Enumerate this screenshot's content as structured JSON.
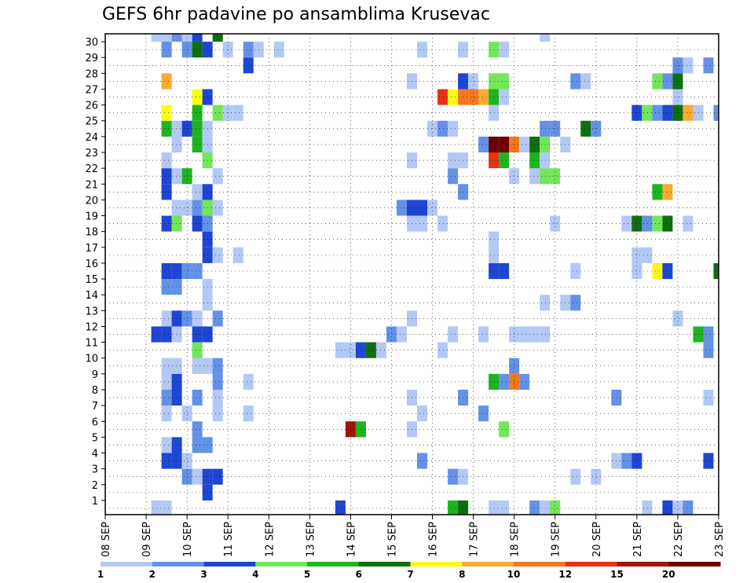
{
  "chart_data": {
    "type": "heatmap",
    "title": "GEFS 6hr padavine po ansamblima Krusevac",
    "xlabel": "",
    "ylabel": "",
    "x_ticks": [
      "08 SEP",
      "09 SEP",
      "10 SEP",
      "11 SEP",
      "12 SEP",
      "13 SEP",
      "14 SEP",
      "15 SEP",
      "16 SEP",
      "17 SEP",
      "18 SEP",
      "19 SEP",
      "20 SEP",
      "21 SEP",
      "22 SEP",
      "23 SEP"
    ],
    "y_ticks": [
      "1",
      "2",
      "3",
      "4",
      "5",
      "6",
      "7",
      "8",
      "9",
      "10",
      "11",
      "12",
      "13",
      "14",
      "15",
      "16",
      "17",
      "18",
      "19",
      "20",
      "21",
      "22",
      "23",
      "24",
      "25",
      "26",
      "27",
      "28",
      "29",
      "30"
    ],
    "xlim_steps": [
      0,
      60
    ],
    "ylim": [
      0,
      30
    ],
    "grid": true,
    "colorbar": {
      "levels": [
        "1",
        "2",
        "3",
        "4",
        "5",
        "6",
        "7",
        "8",
        "10",
        "12",
        "15",
        "20"
      ],
      "colors": [
        "#b4c8f5",
        "#6491e6",
        "#1e46d2",
        "#73e65a",
        "#1eb41e",
        "#0f6e0f",
        "#fafa14",
        "#faaa32",
        "#f5781e",
        "#e63214",
        "#a01408",
        "#6e0000"
      ]
    },
    "legend_position": "bottom",
    "cells": [
      [
        5,
        0,
        1
      ],
      [
        6,
        0,
        1
      ],
      [
        23,
        0,
        3
      ],
      [
        34,
        0,
        5
      ],
      [
        35,
        0,
        6
      ],
      [
        38,
        0,
        1
      ],
      [
        39,
        0,
        1
      ],
      [
        42,
        0,
        2
      ],
      [
        43,
        0,
        1
      ],
      [
        44,
        0,
        4
      ],
      [
        53,
        0,
        1
      ],
      [
        55,
        0,
        3
      ],
      [
        56,
        0,
        1
      ],
      [
        57,
        0,
        2
      ],
      [
        10,
        1,
        3
      ],
      [
        8,
        2,
        2
      ],
      [
        9,
        2,
        1
      ],
      [
        10,
        2,
        3
      ],
      [
        11,
        2,
        3
      ],
      [
        34,
        2,
        2
      ],
      [
        35,
        2,
        1
      ],
      [
        46,
        2,
        1
      ],
      [
        48,
        2,
        1
      ],
      [
        6,
        3,
        3
      ],
      [
        7,
        3,
        3
      ],
      [
        8,
        3,
        1
      ],
      [
        31,
        3,
        2
      ],
      [
        50,
        3,
        1
      ],
      [
        51,
        3,
        2
      ],
      [
        52,
        3,
        3
      ],
      [
        59,
        3,
        3
      ],
      [
        7,
        4,
        3
      ],
      [
        9,
        4,
        2
      ],
      [
        10,
        4,
        2
      ],
      [
        6,
        4,
        1
      ],
      [
        9,
        5,
        2
      ],
      [
        24,
        5,
        11
      ],
      [
        25,
        5,
        5
      ],
      [
        30,
        5,
        1
      ],
      [
        39,
        5,
        4
      ],
      [
        6,
        6,
        1
      ],
      [
        8,
        6,
        1
      ],
      [
        11,
        6,
        1
      ],
      [
        14,
        6,
        1
      ],
      [
        31,
        6,
        1
      ],
      [
        37,
        6,
        2
      ],
      [
        6,
        7,
        2
      ],
      [
        7,
        7,
        3
      ],
      [
        9,
        7,
        2
      ],
      [
        11,
        7,
        1
      ],
      [
        30,
        7,
        1
      ],
      [
        35,
        7,
        2
      ],
      [
        50,
        7,
        2
      ],
      [
        59,
        7,
        1
      ],
      [
        6,
        8,
        1
      ],
      [
        7,
        8,
        3
      ],
      [
        11,
        8,
        2
      ],
      [
        14,
        8,
        1
      ],
      [
        38,
        8,
        5
      ],
      [
        39,
        8,
        2
      ],
      [
        40,
        8,
        9
      ],
      [
        41,
        8,
        2
      ],
      [
        6,
        9,
        1
      ],
      [
        7,
        9,
        1
      ],
      [
        9,
        9,
        1
      ],
      [
        10,
        9,
        1
      ],
      [
        11,
        9,
        2
      ],
      [
        40,
        9,
        2
      ],
      [
        9,
        10,
        4
      ],
      [
        23,
        10,
        1
      ],
      [
        24,
        10,
        1
      ],
      [
        25,
        10,
        3
      ],
      [
        26,
        10,
        6
      ],
      [
        27,
        10,
        1
      ],
      [
        33,
        10,
        1
      ],
      [
        59,
        10,
        2
      ],
      [
        5,
        11,
        3
      ],
      [
        6,
        11,
        3
      ],
      [
        7,
        11,
        1
      ],
      [
        9,
        11,
        3
      ],
      [
        10,
        11,
        3
      ],
      [
        28,
        11,
        2
      ],
      [
        29,
        11,
        1
      ],
      [
        34,
        11,
        1
      ],
      [
        37,
        11,
        1
      ],
      [
        40,
        11,
        1
      ],
      [
        41,
        11,
        1
      ],
      [
        42,
        11,
        1
      ],
      [
        43,
        11,
        1
      ],
      [
        58,
        11,
        5
      ],
      [
        59,
        11,
        2
      ],
      [
        6,
        12,
        1
      ],
      [
        7,
        12,
        3
      ],
      [
        8,
        12,
        2
      ],
      [
        9,
        12,
        1
      ],
      [
        11,
        12,
        2
      ],
      [
        30,
        12,
        1
      ],
      [
        56,
        12,
        1
      ],
      [
        10,
        13,
        1
      ],
      [
        43,
        13,
        1
      ],
      [
        45,
        13,
        1
      ],
      [
        46,
        13,
        2
      ],
      [
        6,
        14,
        2
      ],
      [
        7,
        14,
        2
      ],
      [
        10,
        14,
        1
      ],
      [
        6,
        15,
        3
      ],
      [
        7,
        15,
        3
      ],
      [
        8,
        15,
        2
      ],
      [
        9,
        15,
        2
      ],
      [
        38,
        15,
        3
      ],
      [
        39,
        15,
        3
      ],
      [
        46,
        15,
        1
      ],
      [
        52,
        15,
        1
      ],
      [
        54,
        15,
        7
      ],
      [
        55,
        15,
        3
      ],
      [
        60,
        15,
        6
      ],
      [
        10,
        16,
        3
      ],
      [
        11,
        16,
        1
      ],
      [
        13,
        16,
        1
      ],
      [
        38,
        16,
        1
      ],
      [
        52,
        16,
        1
      ],
      [
        53,
        16,
        1
      ],
      [
        10,
        17,
        3
      ],
      [
        38,
        17,
        1
      ],
      [
        6,
        18,
        3
      ],
      [
        7,
        18,
        4
      ],
      [
        9,
        18,
        3
      ],
      [
        10,
        18,
        2
      ],
      [
        30,
        18,
        1
      ],
      [
        31,
        18,
        1
      ],
      [
        33,
        18,
        1
      ],
      [
        44,
        18,
        1
      ],
      [
        51,
        18,
        1
      ],
      [
        52,
        18,
        6
      ],
      [
        53,
        18,
        2
      ],
      [
        54,
        18,
        4
      ],
      [
        55,
        18,
        6
      ],
      [
        57,
        18,
        1
      ],
      [
        7,
        19,
        1
      ],
      [
        8,
        19,
        1
      ],
      [
        9,
        19,
        2
      ],
      [
        10,
        19,
        4
      ],
      [
        11,
        19,
        1
      ],
      [
        29,
        19,
        2
      ],
      [
        30,
        19,
        3
      ],
      [
        31,
        19,
        3
      ],
      [
        32,
        19,
        1
      ],
      [
        6,
        20,
        3
      ],
      [
        9,
        20,
        1
      ],
      [
        10,
        20,
        3
      ],
      [
        35,
        20,
        2
      ],
      [
        54,
        20,
        5
      ],
      [
        55,
        20,
        8
      ],
      [
        6,
        21,
        3
      ],
      [
        7,
        21,
        1
      ],
      [
        8,
        21,
        5
      ],
      [
        11,
        21,
        1
      ],
      [
        34,
        21,
        2
      ],
      [
        40,
        21,
        1
      ],
      [
        42,
        21,
        1
      ],
      [
        43,
        21,
        4
      ],
      [
        44,
        21,
        4
      ],
      [
        6,
        22,
        1
      ],
      [
        10,
        22,
        4
      ],
      [
        30,
        22,
        1
      ],
      [
        34,
        22,
        1
      ],
      [
        35,
        22,
        1
      ],
      [
        38,
        22,
        10
      ],
      [
        39,
        22,
        5
      ],
      [
        42,
        22,
        5
      ],
      [
        43,
        22,
        1
      ],
      [
        7,
        23,
        1
      ],
      [
        9,
        23,
        5
      ],
      [
        10,
        23,
        1
      ],
      [
        37,
        23,
        2
      ],
      [
        38,
        23,
        12
      ],
      [
        39,
        23,
        12
      ],
      [
        40,
        23,
        9
      ],
      [
        41,
        23,
        1
      ],
      [
        42,
        23,
        6
      ],
      [
        43,
        23,
        4
      ],
      [
        45,
        23,
        1
      ],
      [
        6,
        24,
        5
      ],
      [
        7,
        24,
        1
      ],
      [
        8,
        24,
        3
      ],
      [
        9,
        24,
        5
      ],
      [
        10,
        24,
        1
      ],
      [
        32,
        24,
        1
      ],
      [
        33,
        24,
        2
      ],
      [
        34,
        24,
        1
      ],
      [
        43,
        24,
        2
      ],
      [
        44,
        24,
        2
      ],
      [
        47,
        24,
        6
      ],
      [
        48,
        24,
        2
      ],
      [
        6,
        25,
        7
      ],
      [
        9,
        25,
        5
      ],
      [
        11,
        25,
        4
      ],
      [
        12,
        25,
        1
      ],
      [
        13,
        25,
        1
      ],
      [
        38,
        25,
        1
      ],
      [
        52,
        25,
        3
      ],
      [
        53,
        25,
        4
      ],
      [
        54,
        25,
        2
      ],
      [
        55,
        25,
        3
      ],
      [
        56,
        25,
        6
      ],
      [
        57,
        25,
        8
      ],
      [
        58,
        25,
        1
      ],
      [
        60,
        25,
        2
      ],
      [
        9,
        26,
        7
      ],
      [
        10,
        26,
        3
      ],
      [
        33,
        26,
        10
      ],
      [
        34,
        26,
        7
      ],
      [
        35,
        26,
        9
      ],
      [
        36,
        26,
        9
      ],
      [
        37,
        26,
        8
      ],
      [
        38,
        26,
        5
      ],
      [
        39,
        26,
        1
      ],
      [
        56,
        26,
        1
      ],
      [
        6,
        27,
        8
      ],
      [
        30,
        27,
        1
      ],
      [
        35,
        27,
        3
      ],
      [
        36,
        27,
        1
      ],
      [
        38,
        27,
        4
      ],
      [
        39,
        27,
        4
      ],
      [
        46,
        27,
        2
      ],
      [
        47,
        27,
        1
      ],
      [
        54,
        27,
        4
      ],
      [
        55,
        27,
        2
      ],
      [
        56,
        27,
        6
      ],
      [
        14,
        28,
        3
      ],
      [
        56,
        28,
        2
      ],
      [
        57,
        28,
        1
      ],
      [
        59,
        28,
        2
      ],
      [
        6,
        29,
        2
      ],
      [
        8,
        29,
        2
      ],
      [
        9,
        29,
        6
      ],
      [
        10,
        29,
        3
      ],
      [
        12,
        29,
        1
      ],
      [
        14,
        29,
        2
      ],
      [
        15,
        29,
        1
      ],
      [
        17,
        29,
        1
      ],
      [
        31,
        29,
        1
      ],
      [
        35,
        29,
        1
      ],
      [
        38,
        29,
        4
      ],
      [
        39,
        29,
        1
      ],
      [
        5,
        30,
        1
      ],
      [
        6,
        30,
        1
      ],
      [
        7,
        30,
        2
      ],
      [
        8,
        30,
        1
      ],
      [
        9,
        30,
        3
      ],
      [
        11,
        30,
        6
      ],
      [
        43,
        30,
        1
      ]
    ]
  }
}
